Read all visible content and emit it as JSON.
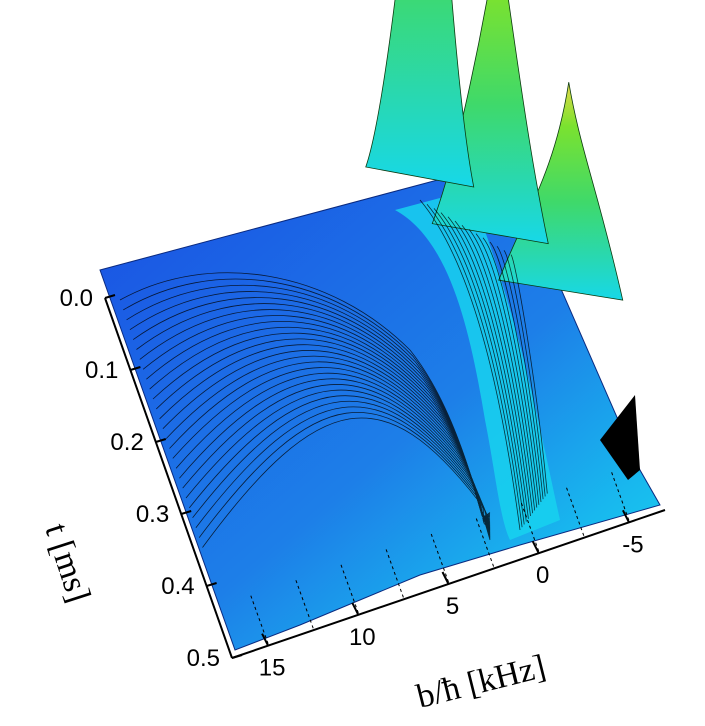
{
  "chart_data": {
    "type": "surface3d",
    "title": "",
    "xlabel": "b/ħ [kHz]",
    "ylabel": "t [ms]",
    "xlim": [
      17,
      -7
    ],
    "ylim": [
      0.0,
      0.5
    ],
    "x_ticks": [
      "15",
      "10",
      "5",
      "0",
      "-5"
    ],
    "y_ticks": [
      "0.0",
      "0.1",
      "0.2",
      "0.3",
      "0.4",
      "0.5"
    ],
    "grid": true,
    "legend": "none",
    "peaks": [
      {
        "b": -1.0,
        "t": 0.0,
        "height": 1.0
      },
      {
        "b": -3.5,
        "t": 0.1,
        "height": 0.66
      },
      {
        "b": -6.0,
        "t": 0.2,
        "height": 0.45
      }
    ],
    "colors": {
      "low": "#1f56e6",
      "mid": "#17e1f4",
      "high": "#55e83a",
      "peak": "#e6d84a",
      "contour": "#000000"
    }
  }
}
